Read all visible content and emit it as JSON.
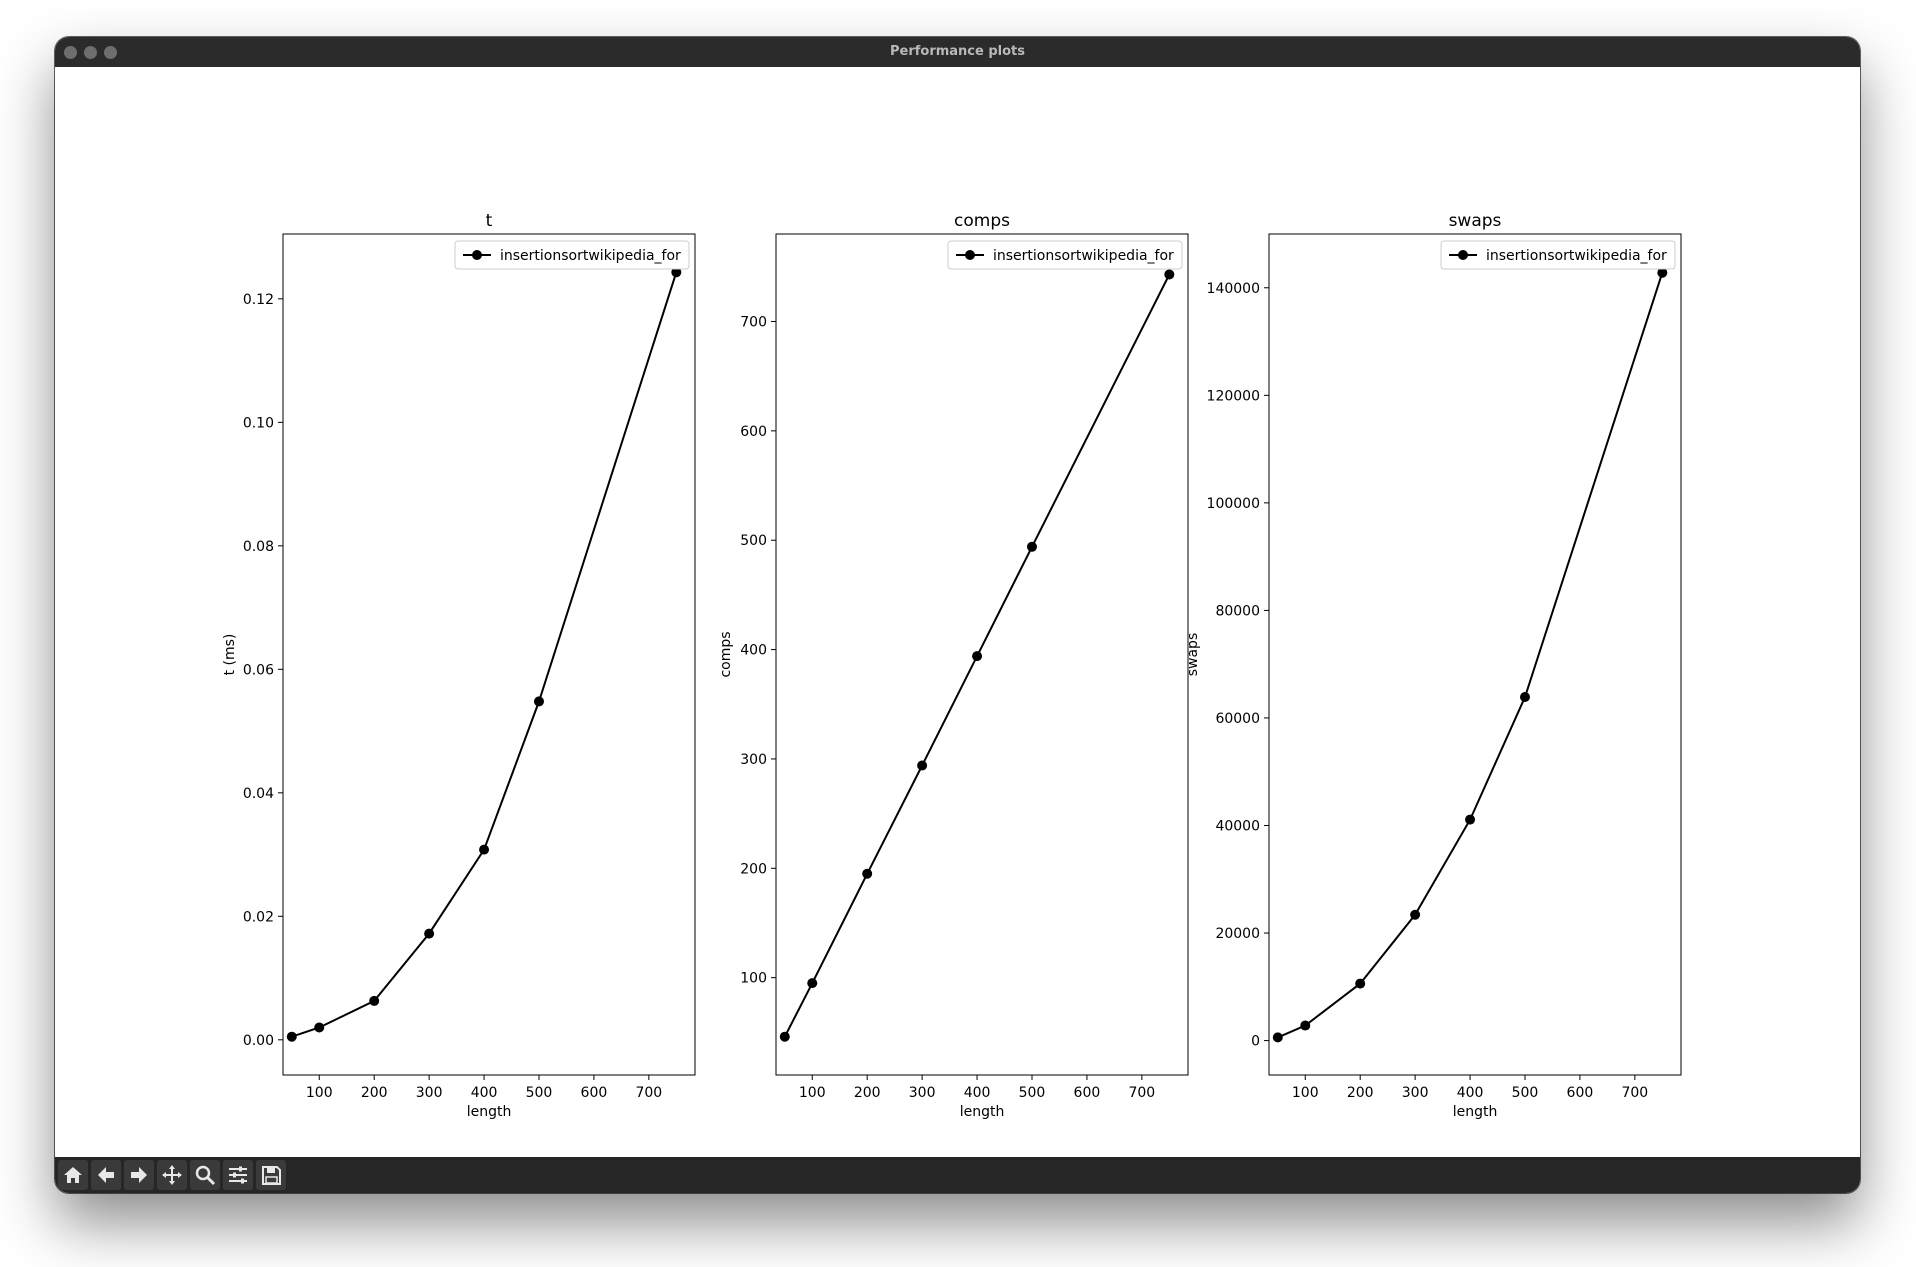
{
  "window": {
    "title": "Performance plots"
  },
  "toolbar": {
    "buttons": [
      {
        "name": "home-icon"
      },
      {
        "name": "back-arrow-icon"
      },
      {
        "name": "forward-arrow-icon"
      },
      {
        "name": "pan-icon"
      },
      {
        "name": "zoom-icon"
      },
      {
        "name": "configure-subplots-icon"
      },
      {
        "name": "save-icon"
      }
    ]
  },
  "chart_data": [
    {
      "type": "line",
      "title": "t",
      "xlabel": "length",
      "ylabel": "t (ms)",
      "xlim": [
        34,
        784
      ],
      "ylim": [
        -0.0057,
        0.1305
      ],
      "xticks": [
        100,
        200,
        300,
        400,
        500,
        600,
        700
      ],
      "yticks": [
        0.0,
        0.02,
        0.04,
        0.06,
        0.08,
        0.1,
        0.12
      ],
      "ytick_labels": [
        "0.00",
        "0.02",
        "0.04",
        "0.06",
        "0.08",
        "0.10",
        "0.12"
      ],
      "legend": "top-right",
      "series": [
        {
          "name": "insertionsortwikipedia_for",
          "color": "#000000",
          "x": [
            50,
            100,
            200,
            300,
            400,
            500,
            750
          ],
          "y": [
            0.0005,
            0.002,
            0.0063,
            0.0172,
            0.0308,
            0.0548,
            0.1243
          ]
        }
      ]
    },
    {
      "type": "line",
      "title": "comps",
      "xlabel": "length",
      "ylabel": "comps",
      "xlim": [
        34,
        784
      ],
      "ylim": [
        11,
        780
      ],
      "xticks": [
        100,
        200,
        300,
        400,
        500,
        600,
        700
      ],
      "yticks": [
        100,
        200,
        300,
        400,
        500,
        600,
        700
      ],
      "ytick_labels": [
        "100",
        "200",
        "300",
        "400",
        "500",
        "600",
        "700"
      ],
      "legend": "top-right",
      "series": [
        {
          "name": "insertionsortwikipedia_for",
          "color": "#000000",
          "x": [
            50,
            100,
            200,
            300,
            400,
            500,
            750
          ],
          "y": [
            46,
            95,
            195,
            294,
            394,
            494,
            743
          ]
        }
      ]
    },
    {
      "type": "line",
      "title": "swaps",
      "xlabel": "length",
      "ylabel": "swaps",
      "xlim": [
        34,
        784
      ],
      "ylim": [
        -6400,
        150000
      ],
      "xticks": [
        100,
        200,
        300,
        400,
        500,
        600,
        700
      ],
      "yticks": [
        0,
        20000,
        40000,
        60000,
        80000,
        100000,
        120000,
        140000
      ],
      "ytick_labels": [
        "0",
        "20000",
        "40000",
        "60000",
        "80000",
        "100000",
        "120000",
        "140000"
      ],
      "legend": "top-right",
      "series": [
        {
          "name": "insertionsortwikipedia_for",
          "color": "#000000",
          "x": [
            50,
            100,
            200,
            300,
            400,
            500,
            750
          ],
          "y": [
            600,
            2800,
            10600,
            23400,
            41100,
            63900,
            142800
          ]
        }
      ]
    }
  ]
}
